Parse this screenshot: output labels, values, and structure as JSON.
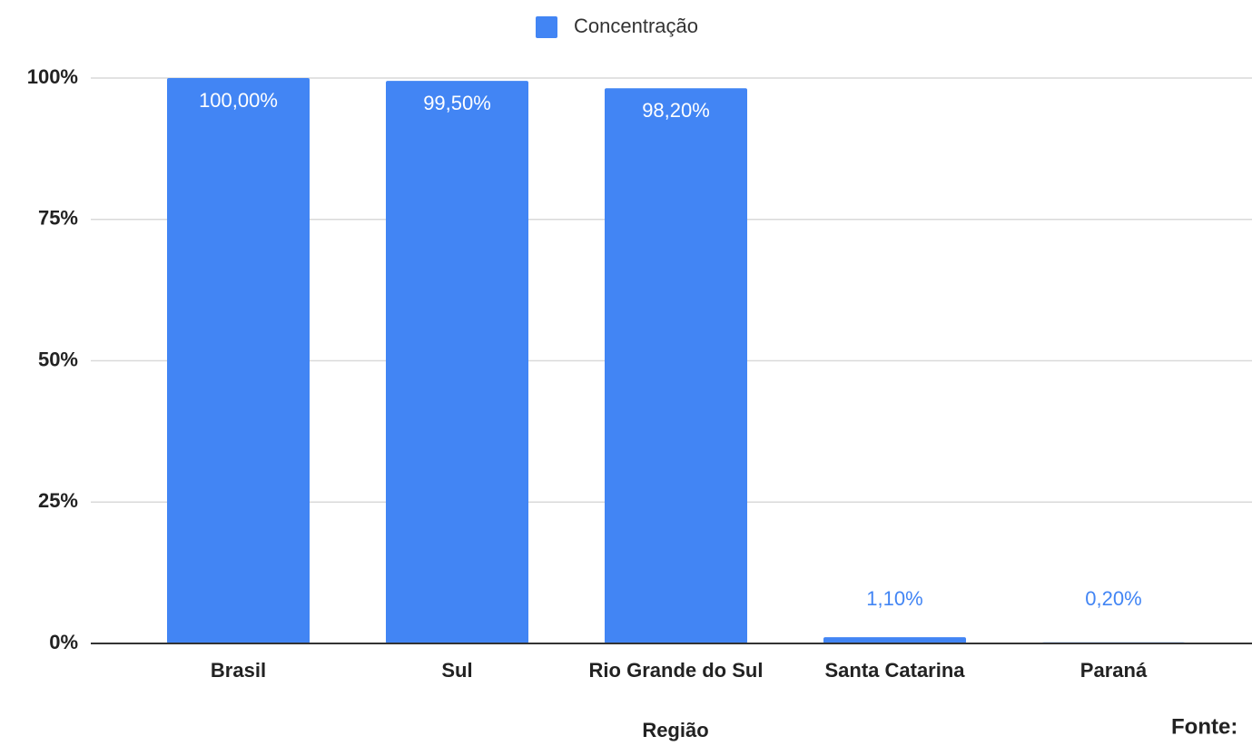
{
  "chart_data": {
    "type": "bar",
    "legend": "Concentração",
    "x_label": "Região",
    "annotation": "Fonte:",
    "categories": [
      "Brasil",
      "Sul",
      "Rio Grande do Sul",
      "Santa Catarina",
      "Paraná"
    ],
    "values": [
      100,
      99.5,
      98.2,
      1.1,
      0.2
    ],
    "value_labels": [
      "100,00%",
      "99,50%",
      "98,20%",
      "1,10%",
      "0,20%"
    ],
    "color": "#4285f4",
    "ylim": [
      0,
      100
    ],
    "yticks": [
      {
        "value": 0,
        "label": "0%"
      },
      {
        "value": 25,
        "label": "25%"
      },
      {
        "value": 50,
        "label": "50%"
      },
      {
        "value": 75,
        "label": "75%"
      },
      {
        "value": 100,
        "label": "100%"
      }
    ],
    "grid": true
  }
}
